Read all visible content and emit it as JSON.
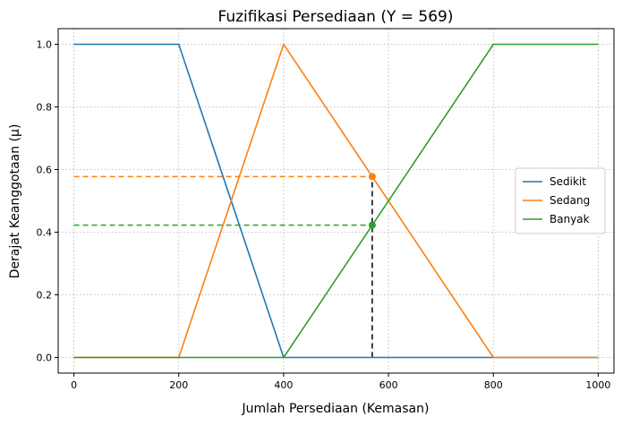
{
  "chart_data": {
    "type": "line",
    "title": "Fuzifikasi Persediaan (Y = 569)",
    "xlabel": "Jumlah Persediaan (Kemasan)",
    "ylabel": "Derajat Keanggotaan (μ)",
    "xlim": [
      -30,
      1030
    ],
    "ylim": [
      -0.05,
      1.05
    ],
    "xticks": [
      0,
      200,
      400,
      600,
      800,
      1000
    ],
    "yticks": [
      0.0,
      0.2,
      0.4,
      0.6,
      0.8,
      1.0
    ],
    "grid": true,
    "legend_position": "center-right",
    "series": [
      {
        "name": "Sedikit",
        "color": "#1f77b4",
        "x": [
          0,
          200,
          400,
          1000
        ],
        "y": [
          1.0,
          1.0,
          0.0,
          0.0
        ]
      },
      {
        "name": "Sedang",
        "color": "#ff7f0e",
        "x": [
          0,
          200,
          400,
          800,
          1000
        ],
        "y": [
          0.0,
          0.0,
          1.0,
          0.0,
          0.0
        ]
      },
      {
        "name": "Banyak",
        "color": "#2ca02c",
        "x": [
          0,
          400,
          800,
          1000
        ],
        "y": [
          0.0,
          0.0,
          1.0,
          1.0
        ]
      }
    ],
    "markers": {
      "input_x": 569,
      "points": [
        {
          "series": "Sedang",
          "x": 569,
          "y": 0.5775,
          "color": "#ff7f0e"
        },
        {
          "series": "Banyak",
          "x": 569,
          "y": 0.4225,
          "color": "#2ca02c"
        }
      ],
      "vertical_line_color": "#000000"
    }
  }
}
